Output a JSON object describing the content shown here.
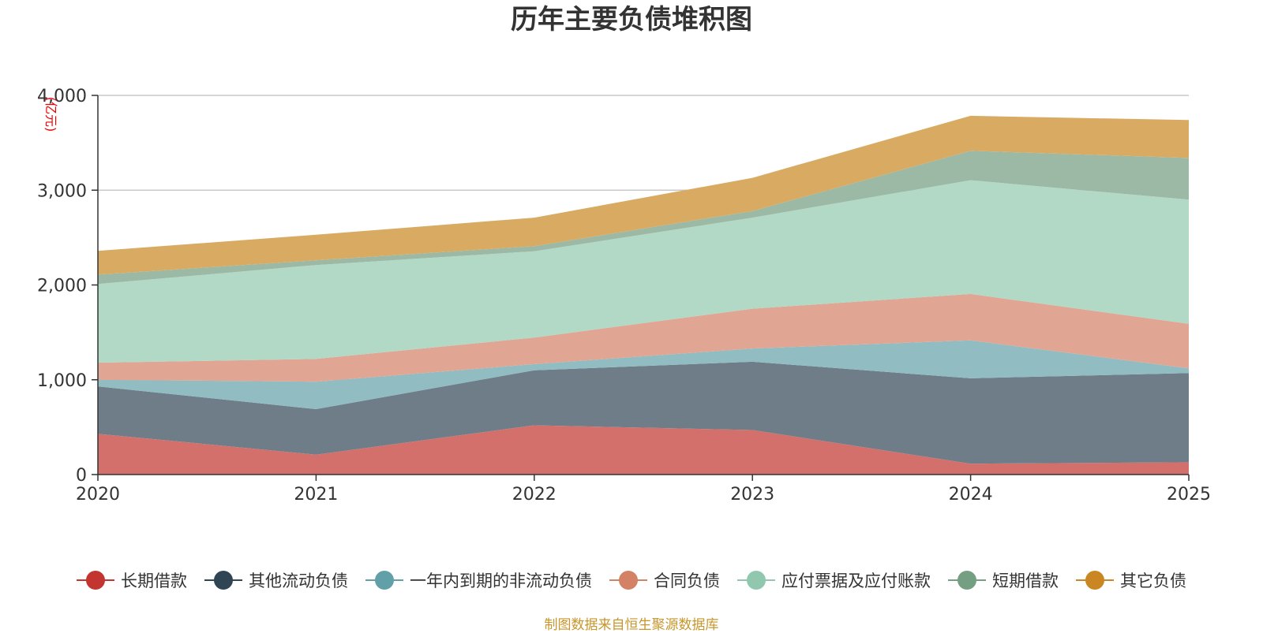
{
  "chart_data": {
    "type": "area",
    "stacked": true,
    "title": "历年主要负债堆积图",
    "unit_label": "(亿元)",
    "categories": [
      "2020",
      "2021",
      "2022",
      "2023",
      "2024",
      "2025"
    ],
    "ylim": [
      0,
      4000
    ],
    "y_ticks": [
      0,
      1000,
      2000,
      3000,
      4000
    ],
    "y_tick_labels": [
      "0",
      "1,000",
      "2,000",
      "3,000",
      "4,000"
    ],
    "grid": true,
    "legend_position": "bottom",
    "series": [
      {
        "name": "长期借款",
        "color": "#c23531",
        "fill": "#d4706c",
        "values": [
          430,
          210,
          520,
          470,
          115,
          130
        ]
      },
      {
        "name": "其他流动负债",
        "color": "#2f4554",
        "fill": "#6e7d88",
        "values": [
          500,
          480,
          580,
          720,
          900,
          940
        ]
      },
      {
        "name": "一年内到期的非流动负债",
        "color": "#61a0a8",
        "fill": "#90bcc2",
        "values": [
          70,
          290,
          65,
          140,
          400,
          50
        ]
      },
      {
        "name": "合同负债",
        "color": "#d48265",
        "fill": "#e0a693",
        "values": [
          180,
          240,
          280,
          420,
          490,
          470
        ]
      },
      {
        "name": "应付票据及应付账款",
        "color": "#91c7ae",
        "fill": "#b2d8c6",
        "values": [
          830,
          990,
          910,
          960,
          1200,
          1310
        ]
      },
      {
        "name": "短期借款",
        "color": "#749f83",
        "fill": "#9cb9a6",
        "values": [
          100,
          50,
          55,
          70,
          310,
          440
        ]
      },
      {
        "name": "其它负债",
        "color": "#ca8622",
        "fill": "#d9aa62",
        "values": [
          250,
          270,
          300,
          350,
          370,
          400
        ]
      }
    ]
  },
  "footer": {
    "source": "制图数据来自恒生聚源数据库"
  }
}
